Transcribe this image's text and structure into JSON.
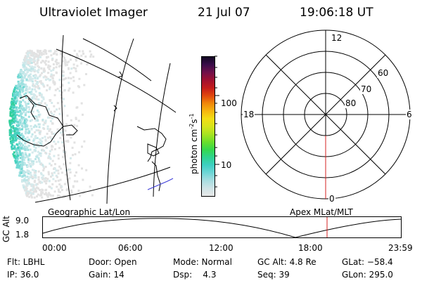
{
  "header": {
    "instrument": "Ultraviolet Imager",
    "date": "21 Jul 07",
    "time": "19:06:18 UT"
  },
  "geo_panel": {
    "label": "Geographic Lat/Lon"
  },
  "colorbar": {
    "unit_label_main": "photon cm",
    "unit_sup1": "-2",
    "unit_mid": "s",
    "unit_sup2": "-1",
    "tick_100": "100",
    "tick_10": "10",
    "colors": [
      "#e8e8e8",
      "#cfe3e6",
      "#a8dde0",
      "#6fd6d6",
      "#3ecfc2",
      "#2fd38f",
      "#35d84e",
      "#6cdf2a",
      "#a8e321",
      "#d7e41b",
      "#f3dd14",
      "#f6b50f",
      "#f0860a",
      "#e0470e",
      "#c41b1b",
      "#a01030",
      "#70104a",
      "#3a0c4a",
      "#120822"
    ]
  },
  "polar_plot": {
    "label": "Apex MLat/MLT",
    "mlt_top": "12",
    "mlt_left": "18",
    "mlt_right": "6",
    "mlt_bottom": "0",
    "lat_60": "60",
    "lat_70": "70",
    "lat_80": "80"
  },
  "altitude_plot": {
    "axis_label": "GC Alt",
    "y_max": "9.0",
    "y_min": "1.8",
    "time_ticks": [
      "00:00",
      "06:00",
      "12:00",
      "18:00",
      "23:59"
    ],
    "current_time_marker_color": "#d62020"
  },
  "status": {
    "filter": "Flt: LBHL",
    "ip": "IP: 36.0",
    "door": "Door: Open",
    "gain": "Gain: 14",
    "mode": "Mode: Normal",
    "dsp": "Dsp:    4.3",
    "gc_alt": "GC Alt: 4.8 Re",
    "seq": "Seq: 39",
    "glat": "GLat: −58.4",
    "glon": "GLon: 295.0"
  }
}
